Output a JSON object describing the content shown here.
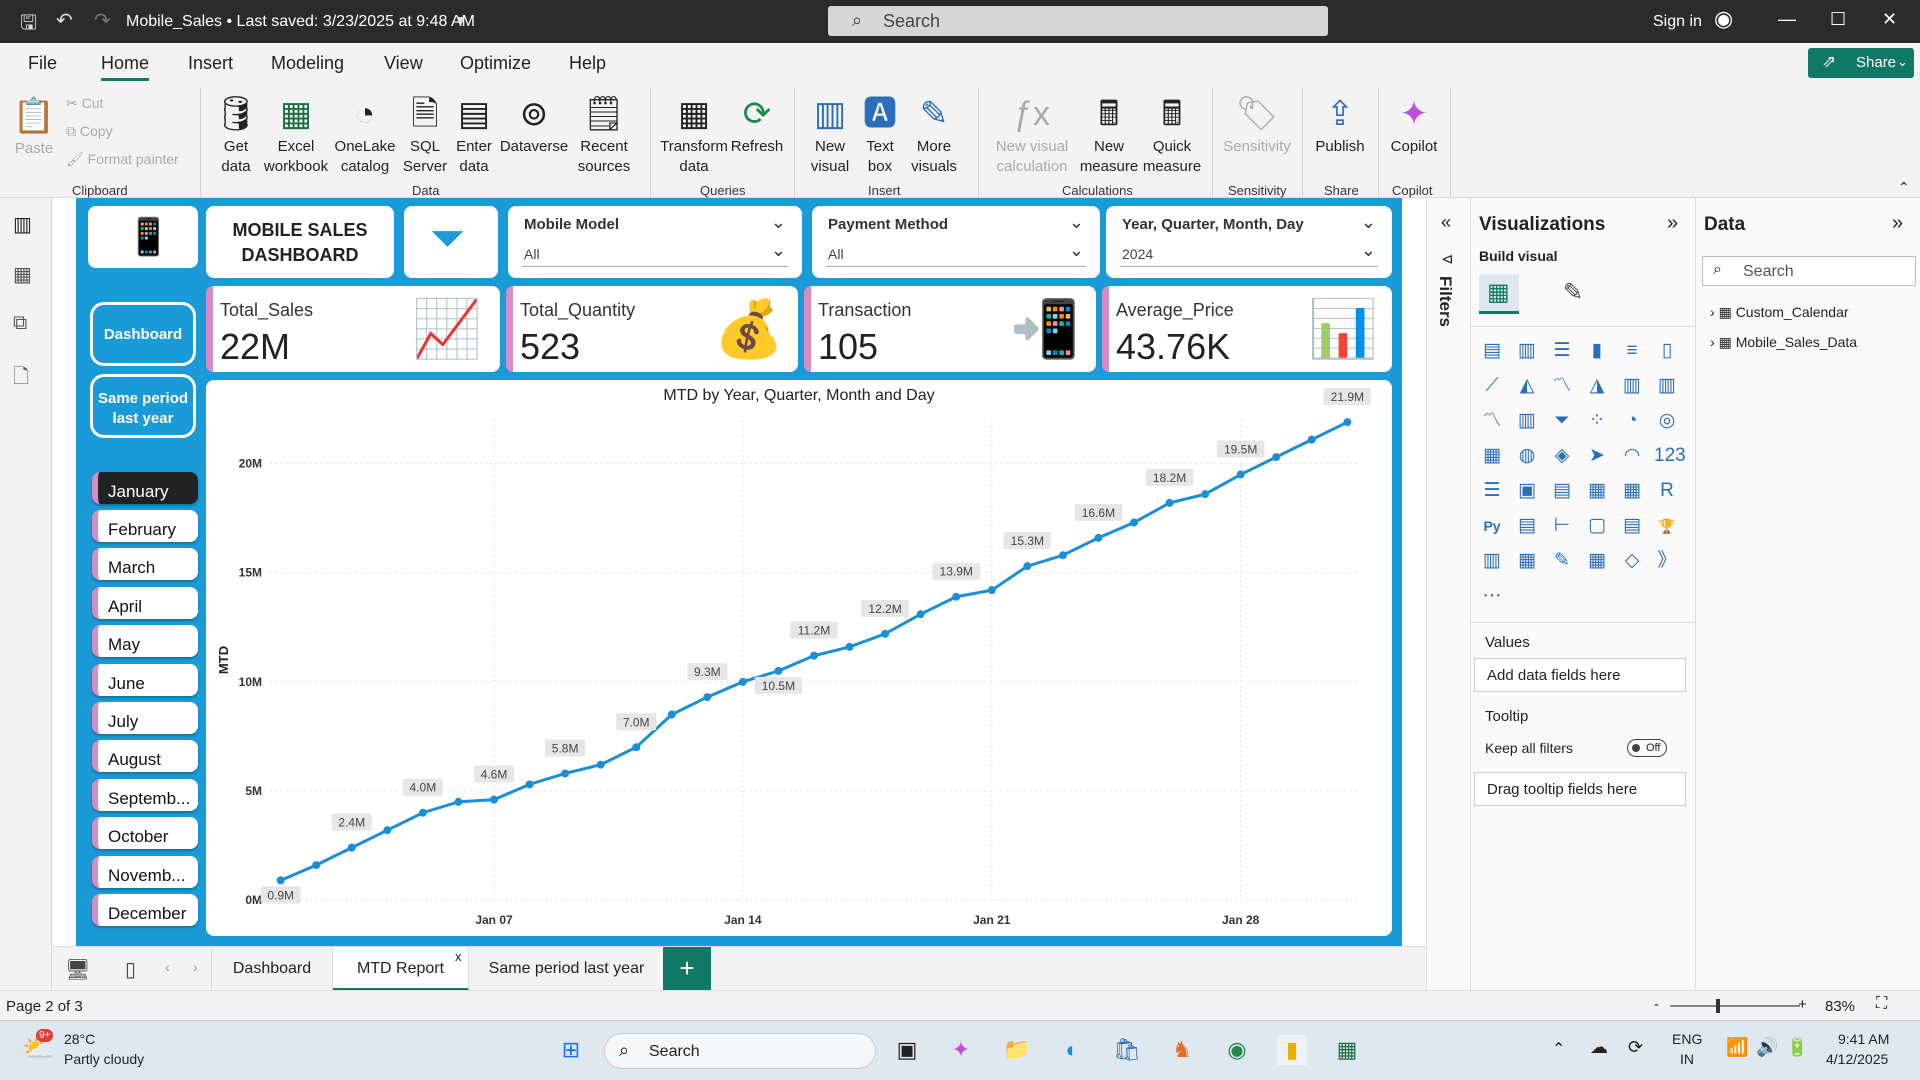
{
  "titlebar": {
    "doc_title": "Mobile_Sales • Last saved: 3/23/2025 at 9:48 AM",
    "search_placeholder": "Search",
    "signin": "Sign in"
  },
  "menu": [
    "File",
    "Home",
    "Insert",
    "Modeling",
    "View",
    "Optimize",
    "Help"
  ],
  "share_label": "Share",
  "ribbon": {
    "clipboard": {
      "paste": "Paste",
      "cut": "Cut",
      "copy": "Copy",
      "format_painter": "Format painter",
      "group": "Clipboard"
    },
    "data": {
      "get_data": "Get data",
      "excel": "Excel workbook",
      "onelake": "OneLake catalog",
      "sql": "SQL Server",
      "enter": "Enter data",
      "dataverse": "Dataverse",
      "recent": "Recent sources",
      "group": "Data"
    },
    "queries": {
      "transform": "Transform data",
      "refresh": "Refresh",
      "group": "Queries"
    },
    "insert": {
      "new_visual": "New visual",
      "text_box": "Text box",
      "more_visuals": "More visuals",
      "group": "Insert"
    },
    "calculations": {
      "new_visual_calc": "New visual calculation",
      "new_measure": "New measure",
      "quick_measure": "Quick measure",
      "group": "Calculations"
    },
    "sensitivity": {
      "label": "Sensitivity",
      "group": "Sensitivity"
    },
    "share": {
      "publish": "Publish",
      "group": "Share"
    },
    "copilot": {
      "label": "Copilot",
      "group": "Copilot"
    }
  },
  "dashboard": {
    "title": "MOBILE SALES DASHBOARD",
    "slicers": [
      {
        "title": "Mobile Model",
        "value": "All"
      },
      {
        "title": "Payment Method",
        "value": "All"
      },
      {
        "title": "Year, Quarter, Month, Day",
        "value": "2024"
      }
    ],
    "kpis": [
      {
        "label": "Total_Sales",
        "value": "22M"
      },
      {
        "label": "Total_Quantity",
        "value": "523"
      },
      {
        "label": "Transaction",
        "value": "105"
      },
      {
        "label": "Average_Price",
        "value": "43.76K"
      }
    ],
    "nav_buttons": [
      "Dashboard",
      "Same period last year"
    ],
    "months": [
      "January",
      "February",
      "March",
      "April",
      "May",
      "June",
      "July",
      "August",
      "Septemb...",
      "October",
      "Novemb...",
      "December"
    ],
    "selected_month": "January"
  },
  "chart_data": {
    "type": "line",
    "title": "MTD by Year, Quarter, Month and Day",
    "xlabel": "",
    "ylabel": "MTD",
    "x_ticks": [
      "Jan 07",
      "Jan 14",
      "Jan 21",
      "Jan 28"
    ],
    "y_ticks": [
      "0M",
      "5M",
      "10M",
      "15M",
      "20M"
    ],
    "ylim": [
      0,
      22
    ],
    "x": [
      1,
      2,
      3,
      4,
      5,
      6,
      7,
      8,
      9,
      10,
      11,
      12,
      13,
      14,
      15,
      16,
      17,
      18,
      19,
      20,
      21,
      22,
      23,
      24,
      25,
      26,
      27,
      28,
      29,
      30,
      31
    ],
    "values": [
      0.9,
      1.6,
      2.4,
      3.2,
      4.0,
      4.5,
      4.6,
      5.3,
      5.8,
      6.2,
      7.0,
      8.5,
      9.3,
      10.0,
      10.5,
      11.2,
      11.6,
      12.2,
      13.1,
      13.9,
      14.2,
      15.3,
      15.8,
      16.6,
      17.3,
      18.2,
      18.6,
      19.5,
      20.3,
      21.1,
      21.9
    ],
    "data_labels": [
      {
        "x": 1,
        "text": "0.9M"
      },
      {
        "x": 3,
        "text": "2.4M"
      },
      {
        "x": 5,
        "text": "4.0M"
      },
      {
        "x": 7,
        "text": "4.6M"
      },
      {
        "x": 9,
        "text": "5.8M"
      },
      {
        "x": 11,
        "text": "7.0M"
      },
      {
        "x": 13,
        "text": "9.3M"
      },
      {
        "x": 15,
        "text": "10.5M"
      },
      {
        "x": 16,
        "text": "11.2M"
      },
      {
        "x": 18,
        "text": "12.2M"
      },
      {
        "x": 20,
        "text": "13.9M"
      },
      {
        "x": 22,
        "text": "15.3M"
      },
      {
        "x": 24,
        "text": "16.6M"
      },
      {
        "x": 26,
        "text": "18.2M"
      },
      {
        "x": 28,
        "text": "19.5M"
      },
      {
        "x": 31,
        "text": "21.9M"
      }
    ],
    "line_color": "#1a8fd8",
    "grid": true
  },
  "page_tabs": [
    "Dashboard",
    "MTD Report",
    "Same period last year"
  ],
  "active_tab": "MTD Report",
  "status": {
    "page": "Page 2 of 3",
    "zoom": "83%"
  },
  "filters_label": "Filters",
  "visualizations": {
    "title": "Visualizations",
    "build_visual": "Build visual",
    "values_label": "Values",
    "values_placeholder": "Add data fields here",
    "tooltip_label": "Tooltip",
    "keep_filters": "Keep all filters",
    "toggle": "Off",
    "tooltip_placeholder": "Drag tooltip fields here"
  },
  "data_pane": {
    "title": "Data",
    "search_placeholder": "Search",
    "tables": [
      "Custom_Calendar",
      "Mobile_Sales_Data"
    ]
  },
  "taskbar": {
    "temp": "28°C",
    "weather": "Partly cloudy",
    "badge": "9+",
    "search": "Search",
    "lang1": "ENG",
    "lang2": "IN",
    "time": "9:41 AM",
    "date": "4/12/2025"
  }
}
